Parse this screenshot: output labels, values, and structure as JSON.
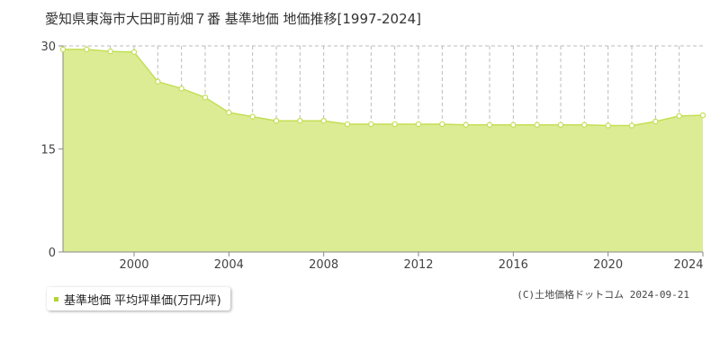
{
  "title": "愛知県東海市大田町前畑７番 基準地価 地価推移[1997-2024]",
  "legend": {
    "label": "基準地価 平均坪単価(万円/坪)"
  },
  "copyright": "(C)土地価格ドットコム 2024-09-21",
  "colors": {
    "fill": "#dcec95",
    "line": "#c3df55",
    "marker_fill": "#ffffff",
    "grid": "#bbbbbb",
    "axis": "#888888"
  },
  "chart_data": {
    "type": "area",
    "title": "愛知県東海市大田町前畑７番 基準地価 地価推移[1997-2024]",
    "xlabel": "",
    "ylabel": "",
    "xlim": [
      1997,
      2024
    ],
    "ylim": [
      0,
      30
    ],
    "yticks": [
      0,
      15,
      30
    ],
    "xticks": [
      2000,
      2004,
      2008,
      2012,
      2016,
      2020,
      2024
    ],
    "grid": true,
    "legend_position": "bottom-left",
    "series": [
      {
        "name": "基準地価 平均坪単価(万円/坪)",
        "x": [
          1997,
          1998,
          1999,
          2000,
          2001,
          2002,
          2003,
          2004,
          2005,
          2006,
          2007,
          2008,
          2009,
          2010,
          2011,
          2012,
          2013,
          2014,
          2015,
          2016,
          2017,
          2018,
          2019,
          2020,
          2021,
          2022,
          2023,
          2024
        ],
        "y": [
          29.5,
          29.5,
          29.2,
          29.1,
          24.8,
          23.8,
          22.5,
          20.3,
          19.7,
          19.1,
          19.1,
          19.1,
          18.6,
          18.6,
          18.6,
          18.6,
          18.6,
          18.5,
          18.5,
          18.5,
          18.5,
          18.5,
          18.5,
          18.4,
          18.4,
          19.0,
          19.8,
          19.9
        ]
      }
    ]
  }
}
